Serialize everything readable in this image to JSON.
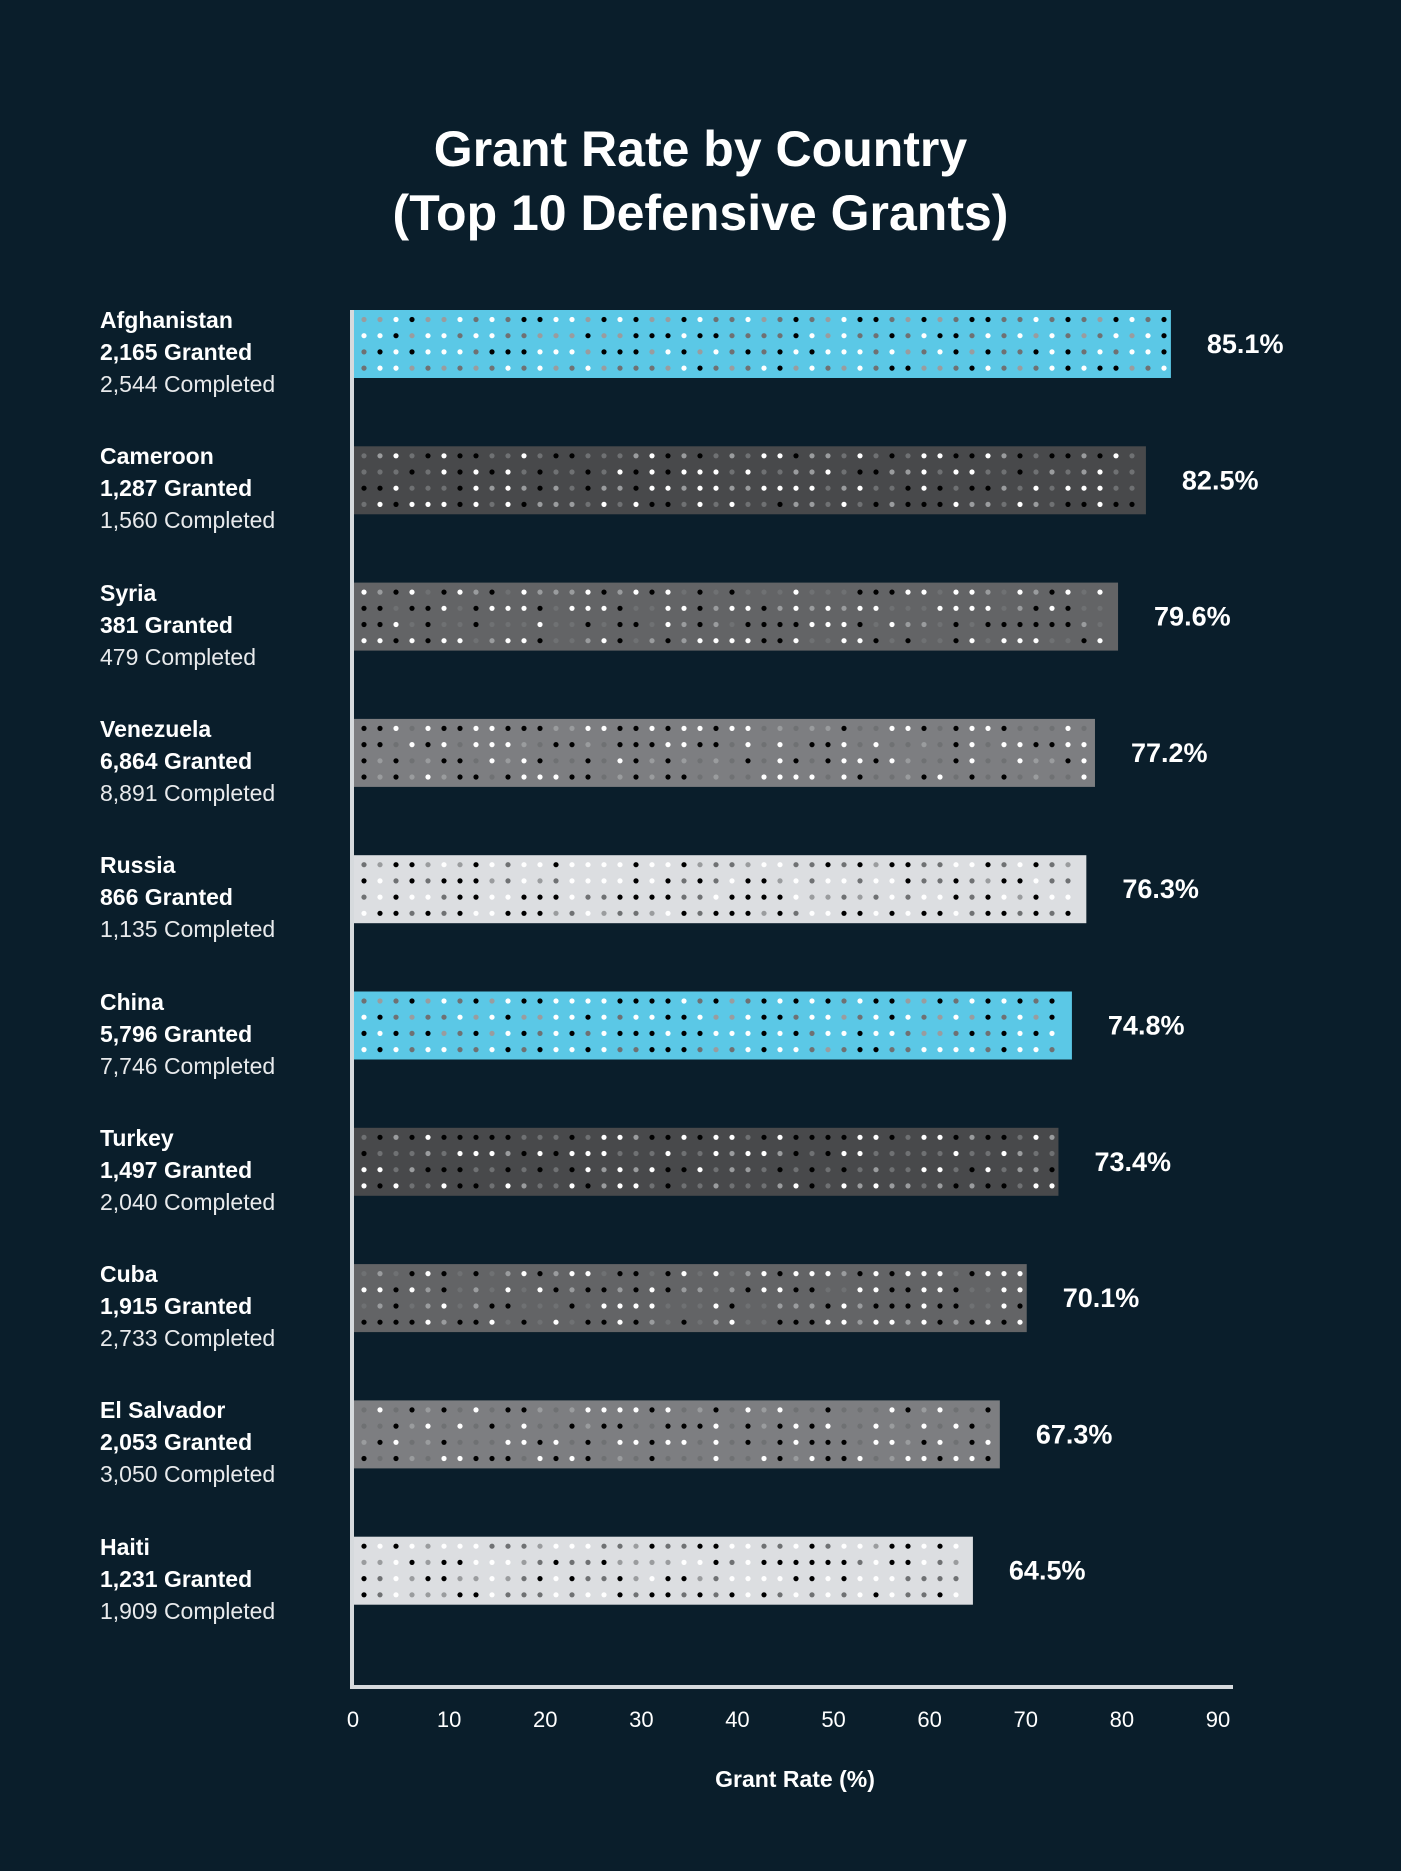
{
  "chart_data": {
    "type": "bar",
    "orientation": "horizontal",
    "title_lines": [
      "Grant Rate by Country",
      "(Top 10 Defensive Grants)"
    ],
    "xlabel": "Grant Rate (%)",
    "ylabel": "",
    "xlim": [
      0,
      90
    ],
    "xticks": [
      "0",
      "10",
      "20",
      "30",
      "40",
      "50",
      "60",
      "70",
      "80",
      "90"
    ],
    "grid": false,
    "categories": [
      "Afghanistan",
      "Cameroon",
      "Syria",
      "Venezuela",
      "Russia",
      "China",
      "Turkey",
      "Cuba",
      "El Salvador",
      "Haiti"
    ],
    "values": [
      85.1,
      82.5,
      79.6,
      77.2,
      76.3,
      74.8,
      73.4,
      70.1,
      67.3,
      64.5
    ],
    "value_labels": [
      "85.1%",
      "82.5%",
      "79.6%",
      "77.2%",
      "76.3%",
      "74.8%",
      "73.4%",
      "70.1%",
      "67.3%",
      "64.5%"
    ],
    "granted_labels": [
      "2,165 Granted",
      "1,287 Granted",
      "381 Granted",
      "6,864 Granted",
      "866 Granted",
      "5,796 Granted",
      "1,497 Granted",
      "1,915 Granted",
      "2,053 Granted",
      "1,231 Granted"
    ],
    "completed_labels": [
      "2,544 Completed",
      "1,560 Completed",
      "479 Completed",
      "8,891 Completed",
      "1,135 Completed",
      "7,746 Completed",
      "2,040 Completed",
      "2,733 Completed",
      "3,050 Completed",
      "1,909 Completed"
    ],
    "bar_colors": [
      "#5bc8e6",
      "#48494b",
      "#636466",
      "#7d7e81",
      "#dcdee1",
      "#5bc8e6",
      "#48494b",
      "#636466",
      "#7d7e81",
      "#dcdee1"
    ]
  },
  "colors": {
    "background": "#0a1e2b",
    "axis": "#d6dadd",
    "text": "#ffffff"
  }
}
